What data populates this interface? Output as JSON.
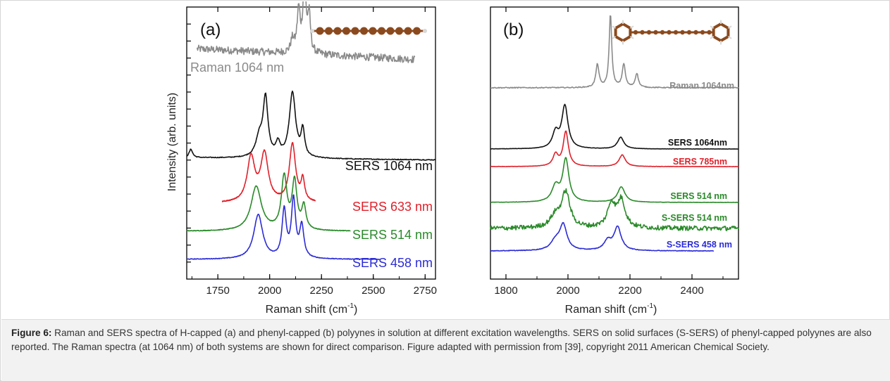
{
  "caption": {
    "label": "Figure 6:",
    "text": " Raman and SERS spectra of H-capped (a) and phenyl-capped (b) polyynes in solution at different excitation wavelengths. SERS on solid surfaces (S-SERS) of phenyl-capped polyynes are also reported. The Raman spectra (at 1064 nm) of both systems are shown for direct comparison. Figure adapted with permission from [39], copyright 2011 American Chemical Society."
  },
  "colors": {
    "gray": "#8a8a8a",
    "black": "#111111",
    "red": "#e0202a",
    "green": "#2a8a2a",
    "blue": "#2b2bd6",
    "molecule_brown": "#8b4a1e",
    "hydrogen": "#d8d8d8"
  },
  "chart_data": [
    {
      "type": "line",
      "panel_label": "(a)",
      "ylabel": "Intensity (arb. units)",
      "xlabel_main": "Raman shift (cm",
      "xlabel_sup": "-1",
      "xlabel_end": ")",
      "xlim": [
        1600,
        2800
      ],
      "xticks": [
        "1750",
        "2000",
        "2250",
        "2500",
        "2750"
      ],
      "xtick_values": [
        1750,
        2000,
        2250,
        2500,
        2750
      ],
      "icons": [
        "h-capped-polyyne-molecule-icon"
      ],
      "series": [
        {
          "name": "Raman 1064 nm",
          "color": "#8a8a8a",
          "baseline": 0.35,
          "x": [
            1650,
            2700
          ],
          "noise": 0.035,
          "peaks": [
            [
              2110,
              0.12,
              10
            ],
            [
              2140,
              0.4,
              9
            ],
            [
              2168,
              0.72,
              8
            ],
            [
              2190,
              0.35,
              8
            ]
          ],
          "slope": -0.1,
          "label": "Raman 1064 nm"
        },
        {
          "name": "SERS 1064 nm",
          "color": "#111111",
          "baseline": 0.05,
          "x": [
            1600,
            2800
          ],
          "noise": 0.004,
          "peaks": [
            [
              1620,
              0.08,
              10
            ],
            [
              1950,
              0.18,
              20
            ],
            [
              1980,
              0.55,
              14
            ],
            [
              2040,
              0.12,
              12
            ],
            [
              2110,
              0.62,
              18
            ],
            [
              2160,
              0.25,
              10
            ]
          ],
          "slope": -0.02,
          "label": "SERS 1064 nm"
        },
        {
          "name": "SERS 633 nm",
          "color": "#e0202a",
          "baseline": 0.02,
          "x": [
            1770,
            2220
          ],
          "noise": 0.004,
          "peaks": [
            [
              1910,
              0.42,
              22
            ],
            [
              1975,
              0.45,
              22
            ],
            [
              2110,
              0.55,
              18
            ],
            [
              2160,
              0.2,
              10
            ]
          ],
          "slope": 0,
          "label": "SERS 633 nm"
        },
        {
          "name": "SERS 514 nm",
          "color": "#2a8a2a",
          "baseline": 0.02,
          "x": [
            1600,
            2390
          ],
          "noise": 0.003,
          "peaks": [
            [
              1935,
              0.42,
              30
            ],
            [
              2070,
              0.5,
              16
            ],
            [
              2120,
              0.45,
              14
            ],
            [
              2165,
              0.22,
              12
            ]
          ],
          "slope": 0,
          "label": "SERS 514 nm"
        },
        {
          "name": "SERS 458 nm",
          "color": "#2b2bd6",
          "baseline": 0.02,
          "x": [
            1600,
            2530
          ],
          "noise": 0.003,
          "peaks": [
            [
              1945,
              0.42,
              26
            ],
            [
              2070,
              0.45,
              12
            ],
            [
              2115,
              0.55,
              12
            ],
            [
              2155,
              0.3,
              12
            ]
          ],
          "slope": 0,
          "label": "SERS 458 nm"
        }
      ]
    },
    {
      "type": "line",
      "panel_label": "(b)",
      "xlabel_main": "Raman shift (cm",
      "xlabel_sup": "-1",
      "xlabel_end": ")",
      "xlim": [
        1750,
        2550
      ],
      "xticks": [
        "1800",
        "2000",
        "2200",
        "2400"
      ],
      "xtick_values": [
        1800,
        2000,
        2200,
        2400
      ],
      "icons": [
        "phenyl-capped-polyyne-molecule-icon"
      ],
      "series": [
        {
          "name": "Raman 1064nm",
          "color": "#8a8a8a",
          "baseline": 0.02,
          "x": [
            1750,
            2550
          ],
          "noise": 0.006,
          "peaks": [
            [
              2095,
              0.3,
              6
            ],
            [
              2137,
              0.95,
              5
            ],
            [
              2180,
              0.3,
              6
            ],
            [
              2222,
              0.18,
              6
            ]
          ],
          "slope": 0,
          "label": "Raman 1064nm"
        },
        {
          "name": "SERS 1064nm",
          "color": "#111111",
          "baseline": 0.0,
          "x": [
            1750,
            2550
          ],
          "noise": 0.002,
          "peaks": [
            [
              1960,
              0.2,
              12
            ],
            [
              1990,
              0.55,
              12
            ],
            [
              2170,
              0.15,
              12
            ]
          ],
          "slope": 0,
          "label": "SERS 1064nm"
        },
        {
          "name": "SERS 785nm",
          "color": "#e0202a",
          "baseline": 0.0,
          "x": [
            1750,
            2550
          ],
          "noise": 0.002,
          "peaks": [
            [
              1960,
              0.15,
              10
            ],
            [
              1993,
              0.45,
              10
            ],
            [
              2175,
              0.15,
              12
            ]
          ],
          "slope": 0,
          "label": "SERS 785nm"
        },
        {
          "name": "SERS 514 nm",
          "color": "#2a8a2a",
          "baseline": 0.0,
          "x": [
            1750,
            2550
          ],
          "noise": 0.002,
          "peaks": [
            [
              1960,
              0.2,
              14
            ],
            [
              1993,
              0.55,
              12
            ],
            [
              2172,
              0.2,
              14
            ]
          ],
          "slope": 0,
          "label": "SERS 514 nm"
        },
        {
          "name": "S-SERS 514 nm",
          "color": "#2a8a2a",
          "baseline": 0.0,
          "x": [
            1750,
            2550
          ],
          "noise": 0.03,
          "peaks": [
            [
              1960,
              0.15,
              20
            ],
            [
              1993,
              0.45,
              16
            ],
            [
              2140,
              0.3,
              15
            ],
            [
              2172,
              0.35,
              15
            ]
          ],
          "slope": 0,
          "label": "S-SERS 514 nm"
        },
        {
          "name": "S-SERS 458 nm",
          "color": "#2b2bd6",
          "baseline": 0.0,
          "x": [
            1750,
            2470
          ],
          "noise": 0.004,
          "peaks": [
            [
              1960,
              0.12,
              18
            ],
            [
              1985,
              0.32,
              14
            ],
            [
              2128,
              0.12,
              14
            ],
            [
              2160,
              0.3,
              14
            ]
          ],
          "slope": 0,
          "label": "S-SERS 458 nm"
        }
      ]
    }
  ]
}
